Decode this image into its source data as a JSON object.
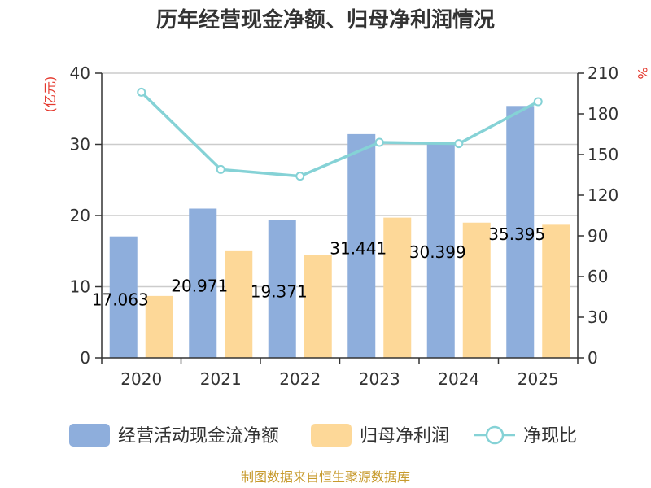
{
  "chart_data": {
    "type": "bar",
    "title": "历年经营现金净额、归母净利润情况",
    "categories": [
      "2020",
      "2021",
      "2022",
      "2023",
      "2024",
      "2025"
    ],
    "series": [
      {
        "name": "经营活动现金流净额",
        "kind": "bar",
        "axis": "left",
        "color": "#8eaedc",
        "values": [
          17.063,
          20.971,
          19.371,
          31.441,
          30.399,
          35.395
        ],
        "labels": [
          "17.063",
          "20.971",
          "19.371",
          "31.441",
          "30.399",
          "35.395"
        ]
      },
      {
        "name": "归母净利润",
        "kind": "bar",
        "axis": "left",
        "color": "#fdd898",
        "values": [
          8.7,
          15.1,
          14.4,
          19.7,
          19.0,
          18.7
        ]
      },
      {
        "name": "净现比",
        "kind": "line",
        "axis": "right",
        "color": "#85d2d6",
        "values": [
          196,
          139,
          134,
          159,
          158,
          189
        ]
      }
    ],
    "y_left": {
      "unit": "(亿元)",
      "range": [
        0,
        40
      ],
      "ticks": [
        "0",
        "10",
        "20",
        "30",
        "40"
      ]
    },
    "y_right": {
      "unit": "%",
      "range": [
        0,
        210
      ],
      "ticks": [
        "0",
        "30",
        "60",
        "90",
        "120",
        "150",
        "180",
        "210"
      ]
    },
    "grid": true,
    "legend_position": "bottom"
  },
  "source_note": "制图数据来自恒生聚源数据库"
}
